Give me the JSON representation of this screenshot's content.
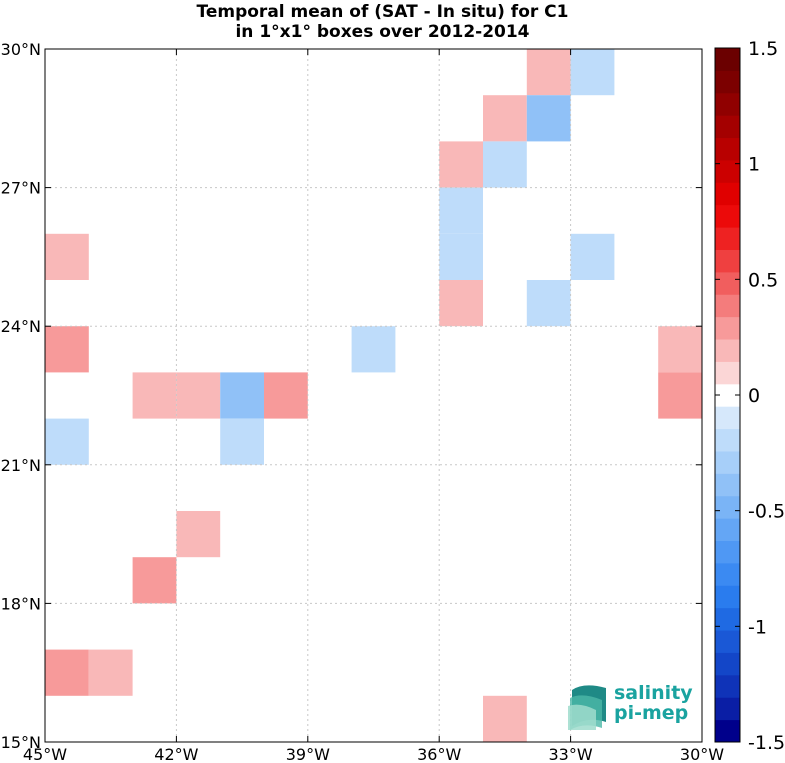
{
  "title_line1": "Temporal mean of (SAT - In situ) for C1",
  "title_line2": "in 1°x1° boxes over 2012-2014",
  "logo": {
    "line1": "salinity",
    "line2": "pi-mep"
  },
  "map": {
    "lon_range": [
      -45,
      -30
    ],
    "lat_range": [
      15,
      30
    ],
    "x_ticks": [
      {
        "lon": -45,
        "label": "45°W"
      },
      {
        "lon": -42,
        "label": "42°W"
      },
      {
        "lon": -39,
        "label": "39°W"
      },
      {
        "lon": -36,
        "label": "36°W"
      },
      {
        "lon": -33,
        "label": "33°W"
      },
      {
        "lon": -30,
        "label": "30°W"
      }
    ],
    "y_ticks": [
      {
        "lat": 15,
        "label": "15°N"
      },
      {
        "lat": 18,
        "label": "18°N"
      },
      {
        "lat": 21,
        "label": "21°N"
      },
      {
        "lat": 24,
        "label": "24°N"
      },
      {
        "lat": 27,
        "label": "27°N"
      },
      {
        "lat": 30,
        "label": "30°N"
      }
    ],
    "grid": true
  },
  "chart_data": {
    "type": "heatmap",
    "title": "Temporal mean of (SAT - In situ) for C1 in 1°x1° boxes over 2012-2014",
    "cell_size_deg": 1,
    "clim": [
      -1.5,
      1.5
    ],
    "colorbar_ticks": [
      {
        "value": 1.5,
        "label": "1.5"
      },
      {
        "value": 1,
        "label": "1"
      },
      {
        "value": 0.5,
        "label": "0.5"
      },
      {
        "value": 0,
        "label": "0"
      },
      {
        "value": -0.5,
        "label": "-0.5"
      },
      {
        "value": -1,
        "label": "-1"
      },
      {
        "value": -1.5,
        "label": "-1.5"
      }
    ],
    "colormap": [
      "#00008b",
      "#0a1ea5",
      "#0f33b8",
      "#1346c8",
      "#1a58d6",
      "#1f6ae3",
      "#2a7cee",
      "#3b8af2",
      "#4f98f4",
      "#64a6f5",
      "#7ab4f6",
      "#90c1f7",
      "#a7cff9",
      "#bedcfa",
      "#d6e8fb",
      "#ffffff",
      "#fbd6d6",
      "#f9b8b8",
      "#f79a9a",
      "#f47c7c",
      "#f15e5e",
      "#ef4040",
      "#ee2222",
      "#ec0a0a",
      "#e00000",
      "#cc0000",
      "#b80000",
      "#a40000",
      "#900000",
      "#7c0000",
      "#6b0000"
    ],
    "cells": [
      {
        "lon": -34,
        "lat": 29,
        "value": 0.18
      },
      {
        "lon": -33,
        "lat": 29,
        "value": -0.15
      },
      {
        "lon": -35,
        "lat": 28,
        "value": 0.18
      },
      {
        "lon": -34,
        "lat": 28,
        "value": -0.35
      },
      {
        "lon": -36,
        "lat": 27,
        "value": 0.18
      },
      {
        "lon": -35,
        "lat": 27,
        "value": -0.15
      },
      {
        "lon": -36,
        "lat": 26,
        "value": -0.15
      },
      {
        "lon": -36,
        "lat": 25,
        "value": -0.15
      },
      {
        "lon": -33,
        "lat": 25,
        "value": -0.15
      },
      {
        "lon": -45,
        "lat": 25,
        "value": 0.18
      },
      {
        "lon": -36,
        "lat": 24,
        "value": 0.18
      },
      {
        "lon": -34,
        "lat": 24,
        "value": -0.15
      },
      {
        "lon": -45,
        "lat": 23,
        "value": 0.3
      },
      {
        "lon": -38,
        "lat": 23,
        "value": -0.15
      },
      {
        "lon": -31,
        "lat": 23,
        "value": 0.18
      },
      {
        "lon": -43,
        "lat": 22,
        "value": 0.18
      },
      {
        "lon": -42,
        "lat": 22,
        "value": 0.18
      },
      {
        "lon": -41,
        "lat": 22,
        "value": -0.35
      },
      {
        "lon": -40,
        "lat": 22,
        "value": 0.3
      },
      {
        "lon": -31,
        "lat": 22,
        "value": 0.3
      },
      {
        "lon": -45,
        "lat": 21,
        "value": -0.15
      },
      {
        "lon": -41,
        "lat": 21,
        "value": -0.15
      },
      {
        "lon": -42,
        "lat": 19,
        "value": 0.18
      },
      {
        "lon": -43,
        "lat": 18,
        "value": 0.3
      },
      {
        "lon": -45,
        "lat": 16,
        "value": 0.3
      },
      {
        "lon": -44,
        "lat": 16,
        "value": 0.18
      },
      {
        "lon": -35,
        "lat": 15,
        "value": 0.18
      }
    ]
  }
}
